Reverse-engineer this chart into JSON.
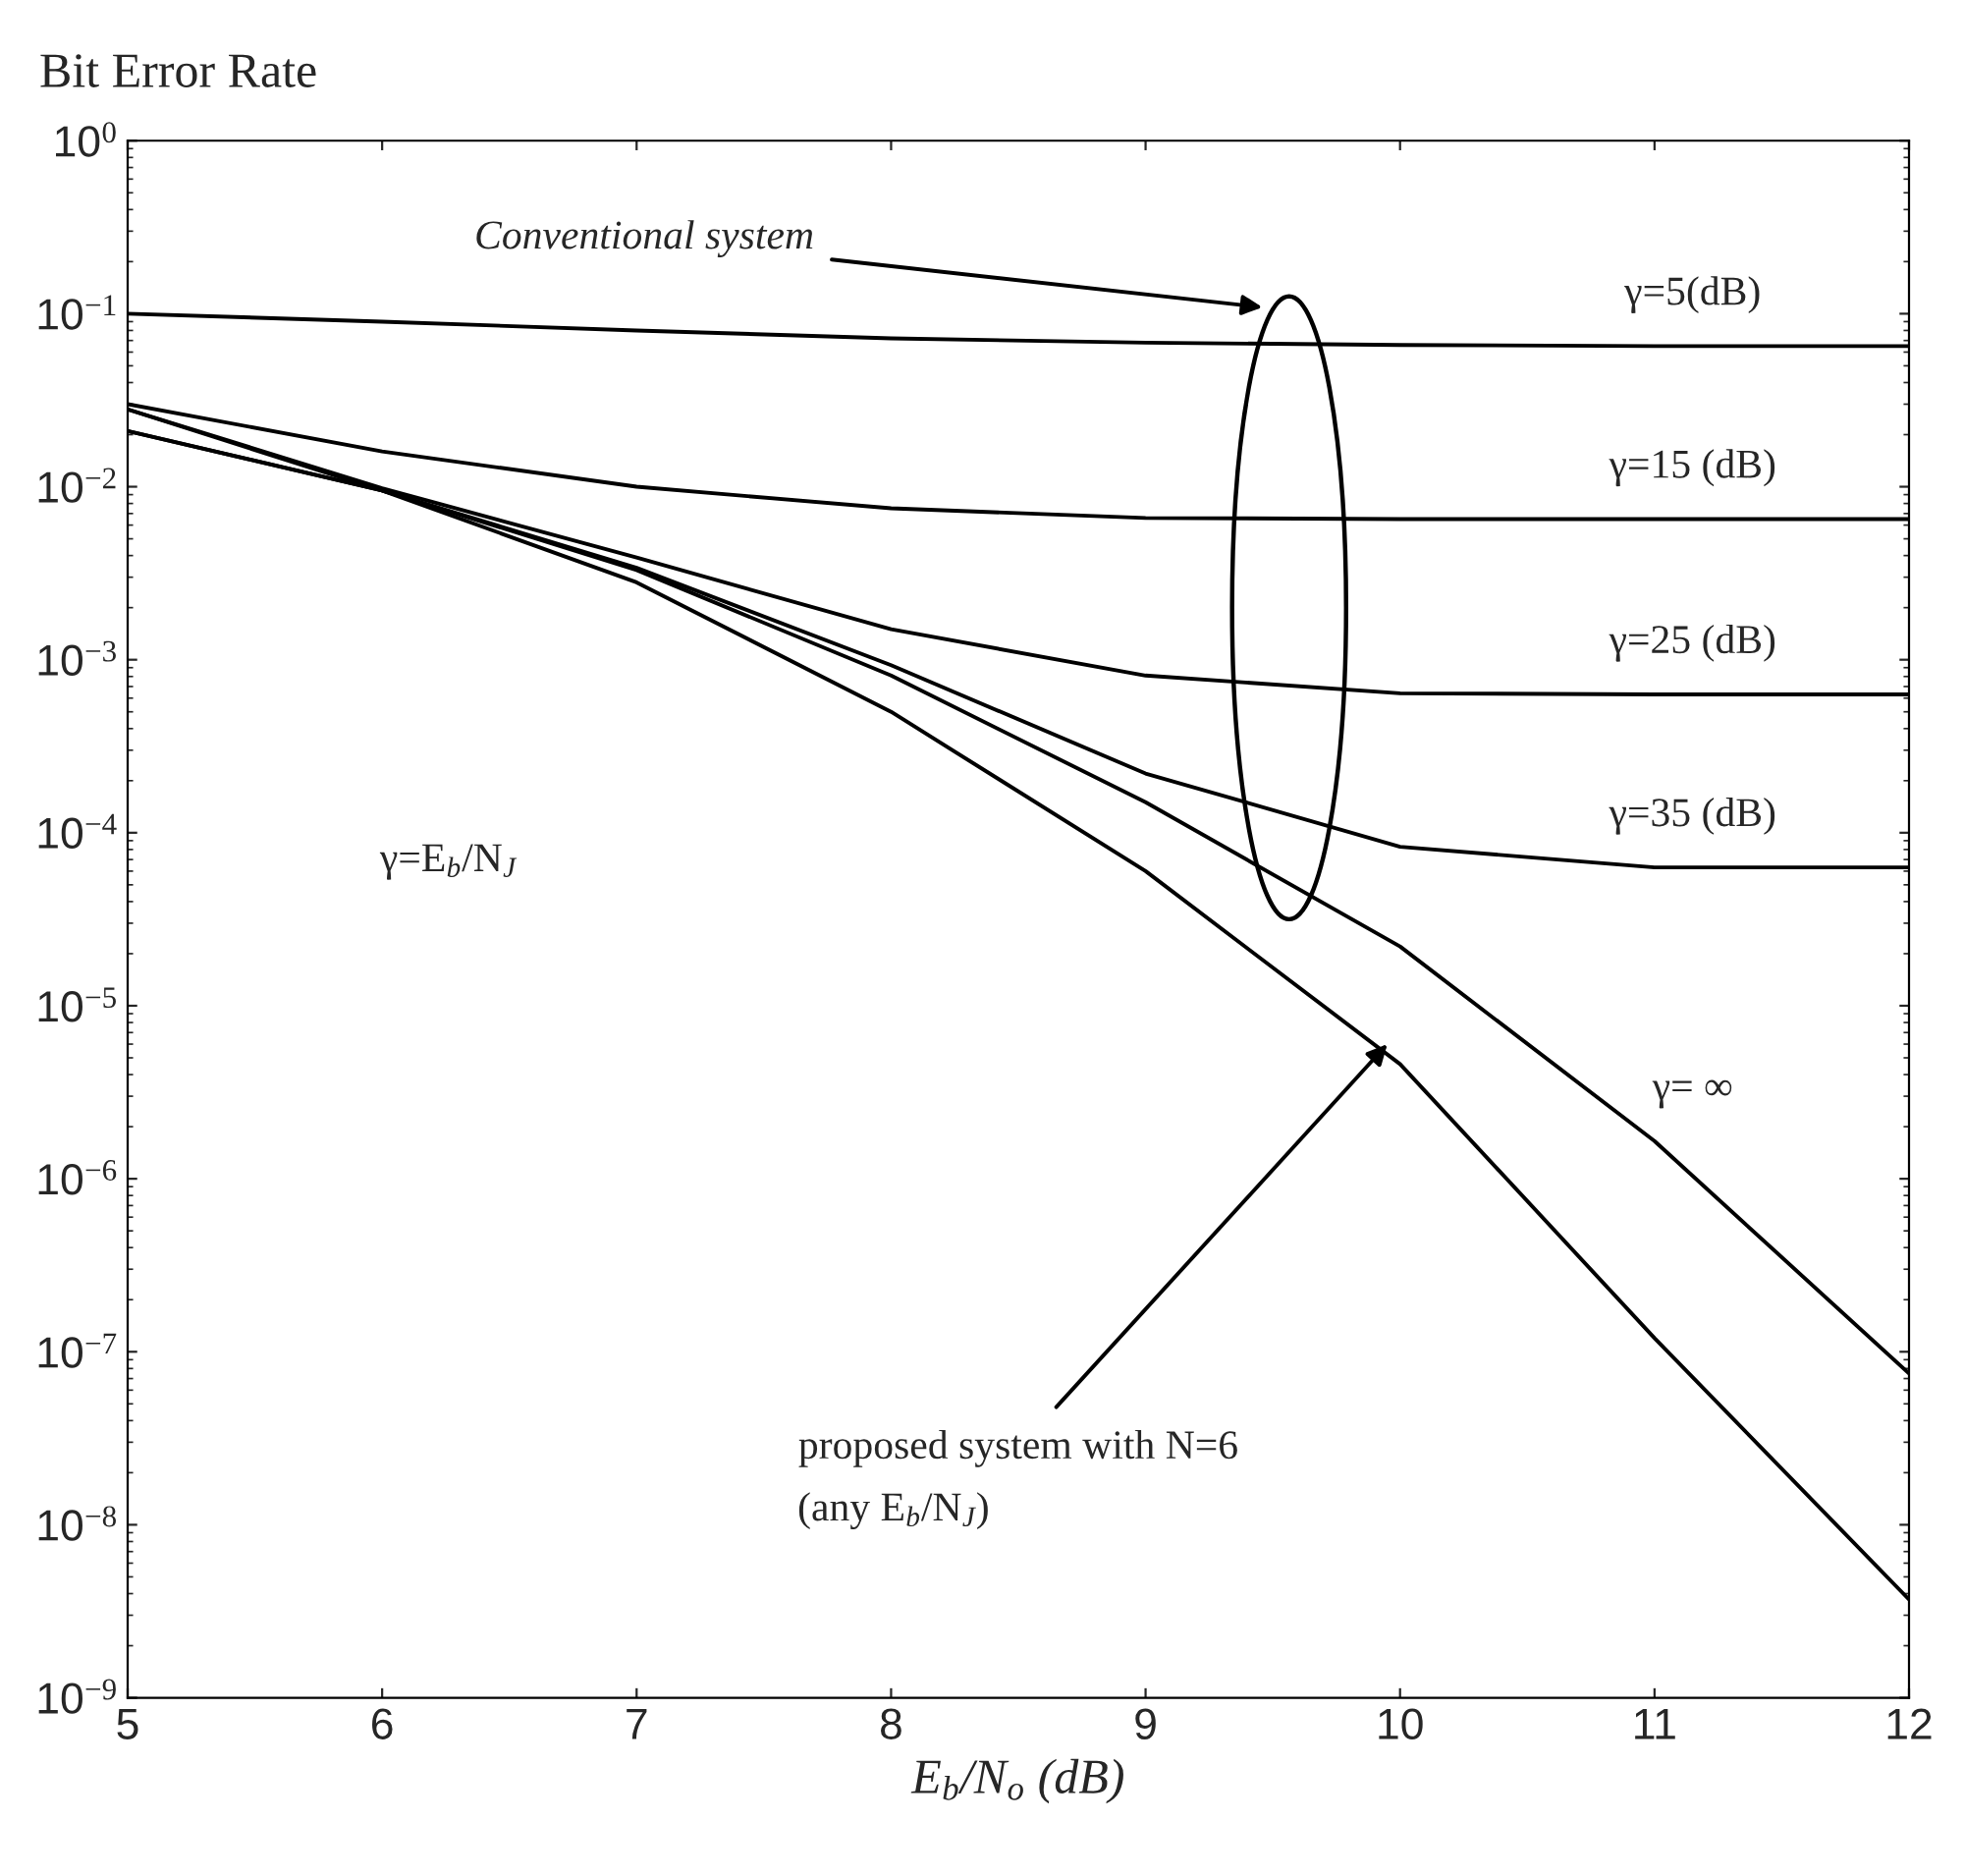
{
  "chart_data": {
    "type": "line",
    "ylabel": "Bit Error Rate",
    "xlabel": "E$_{b}$/N$_{o}$ (dB)",
    "log": "y",
    "grid": false,
    "legend": false,
    "marker": "none",
    "line_style": "solid",
    "x": [
      5,
      6,
      7,
      8,
      9,
      10,
      11,
      12
    ],
    "xlim": [
      5,
      12
    ],
    "xticks": [
      5,
      6,
      7,
      8,
      9,
      10,
      11,
      12
    ],
    "ylim": [
      1e-09,
      1
    ],
    "yticks": [
      {
        "value": 1,
        "label": "10$^{0}$"
      },
      {
        "value": 0.1,
        "label": "10$^{−1}$"
      },
      {
        "value": 0.01,
        "label": "10$^{−2}$"
      },
      {
        "value": 0.001,
        "label": "10$^{−3}$"
      },
      {
        "value": 0.0001,
        "label": "10$^{−4}$"
      },
      {
        "value": 1e-05,
        "label": "10$^{−5}$"
      },
      {
        "value": 1e-06,
        "label": "10$^{−6}$"
      },
      {
        "value": 1e-07,
        "label": "10$^{−7}$"
      },
      {
        "value": 1e-08,
        "label": "10$^{−8}$"
      },
      {
        "value": 1e-09,
        "label": "10$^{−9}$"
      }
    ],
    "series": [
      {
        "name": "γ=5(dB)",
        "color": "#000000",
        "values": [
          0.1,
          0.09,
          0.08,
          0.072,
          0.068,
          0.066,
          0.065,
          0.065
        ]
      },
      {
        "name": "γ=15 (dB)",
        "color": "#000000",
        "values": [
          0.03,
          0.016,
          0.01,
          0.0075,
          0.0066,
          0.0065,
          0.0065,
          0.0065
        ]
      },
      {
        "name": "γ=25 (dB)",
        "color": "#000000",
        "values": [
          0.028,
          0.0098,
          0.0039,
          0.0015,
          0.00081,
          0.00064,
          0.00063,
          0.00063
        ]
      },
      {
        "name": "γ=35 (dB)",
        "color": "#000000",
        "values": [
          0.021,
          0.0095,
          0.0034,
          0.00093,
          0.00022,
          8.3e-05,
          6.3e-05,
          6.3e-05
        ]
      },
      {
        "name": "γ= ∞",
        "color": "#000000",
        "values": [
          0.021,
          0.0095,
          0.0033,
          0.00081,
          0.00015,
          2.2e-05,
          1.65e-06,
          7.5e-08
        ]
      },
      {
        "color": "#000000",
        "values": [
          0.028,
          0.0095,
          0.0028,
          0.0005,
          6e-05,
          4.6e-06,
          1.2e-07,
          3.7e-09
        ]
      }
    ],
    "annotations": [
      "Conventional system",
      {
        "text": "proposed system with N=6",
        "x": 9.95,
        "y": 6e-06
      },
      "(any E$_{b}$/N$_{J}$)",
      "γ=E$_{b}$/N$_{J}$"
    ]
  }
}
